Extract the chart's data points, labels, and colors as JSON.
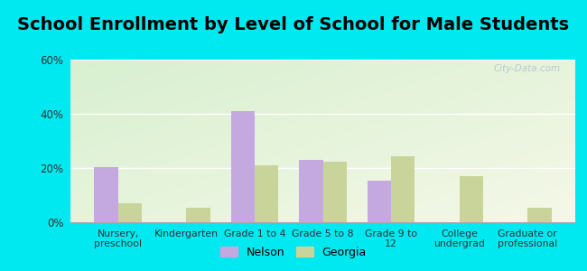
{
  "title": "School Enrollment by Level of School for Male Students",
  "categories": [
    "Nursery,\npreschool",
    "Kindergarten",
    "Grade 1 to 4",
    "Grade 5 to 8",
    "Grade 9 to\n12",
    "College\nundergrad",
    "Graduate or\nprofessional"
  ],
  "nelson": [
    20.5,
    0,
    41.0,
    23.0,
    15.5,
    0,
    0
  ],
  "georgia": [
    7.0,
    5.5,
    21.0,
    22.5,
    24.5,
    17.0,
    5.5
  ],
  "nelson_color": "#c4a8e0",
  "georgia_color": "#c8d49a",
  "background_outer": "#00e8f0",
  "ylim": [
    0,
    60
  ],
  "yticks": [
    0,
    20,
    40,
    60
  ],
  "ytick_labels": [
    "0%",
    "20%",
    "40%",
    "60%"
  ],
  "legend_nelson": "Nelson",
  "legend_georgia": "Georgia",
  "title_fontsize": 14,
  "bar_width": 0.35
}
